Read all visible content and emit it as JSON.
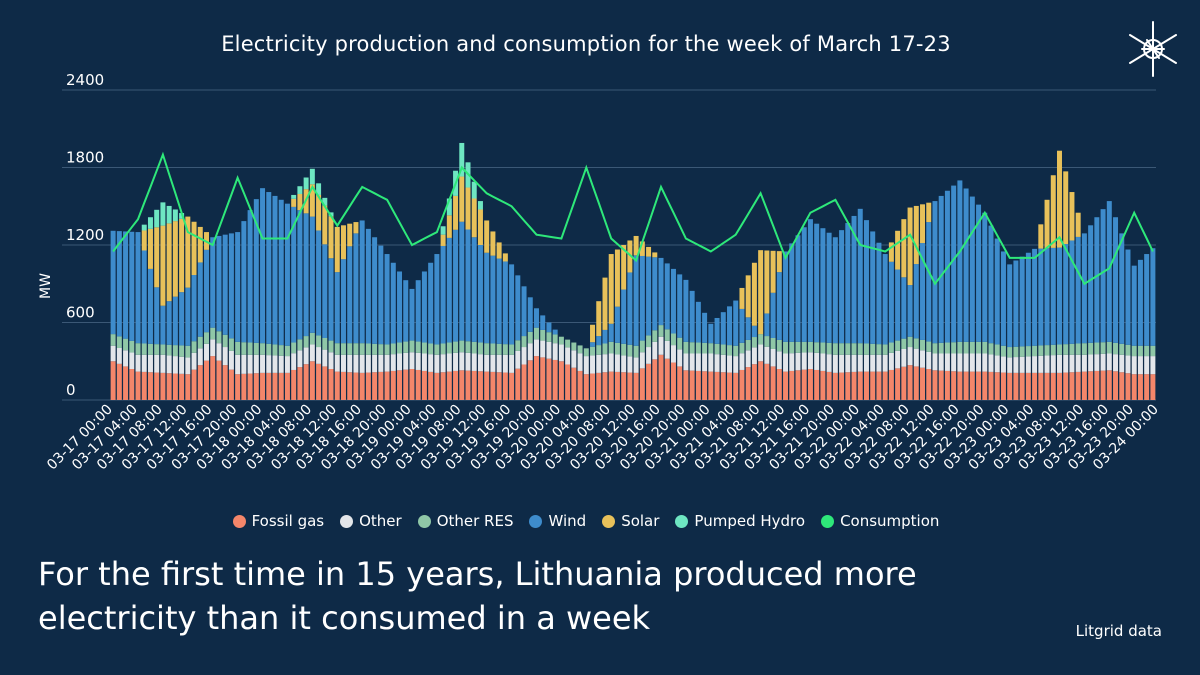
{
  "chart_data": {
    "type": "bar",
    "stacked": true,
    "title": "Electricity production and consumption for the week of March 17-23",
    "ylabel": "MW",
    "xlabel": "",
    "ylim": [
      0,
      2400
    ],
    "yticks": [
      0,
      600,
      1200,
      1800,
      2400
    ],
    "tick_labels": [
      "03-17 00:00",
      "03-17 04:00",
      "03-17 08:00",
      "03-17 12:00",
      "03-17 16:00",
      "03-17 20:00",
      "03-18 00:00",
      "03-18 04:00",
      "03-18 08:00",
      "03-18 12:00",
      "03-18 16:00",
      "03-18 20:00",
      "03-19 00:00",
      "03-19 04:00",
      "03-19 08:00",
      "03-19 12:00",
      "03-19 16:00",
      "03-19 20:00",
      "03-20 00:00",
      "03-20 04:00",
      "03-20 08:00",
      "03-20 12:00",
      "03-20 16:00",
      "03-20 20:00",
      "03-21 00:00",
      "03-21 04:00",
      "03-21 08:00",
      "03-21 12:00",
      "03-21 16:00",
      "03-21 20:00",
      "03-22 00:00",
      "03-22 04:00",
      "03-22 08:00",
      "03-22 12:00",
      "03-22 16:00",
      "03-22 20:00",
      "03-23 00:00",
      "03-23 04:00",
      "03-23 08:00",
      "03-23 12:00",
      "03-23 16:00",
      "03-23 20:00",
      "03-24 00:00"
    ],
    "bars_per_tick": 4,
    "series": [
      {
        "name": "Fossil gas",
        "color": "#f4866a",
        "values": [
          300,
          220,
          210,
          200,
          340,
          200,
          210,
          210,
          300,
          220,
          210,
          220,
          240,
          210,
          230,
          220,
          210,
          340,
          300,
          200,
          220,
          210,
          350,
          230,
          220,
          210,
          300,
          220,
          240,
          210,
          220,
          220,
          270,
          230,
          220,
          220,
          210,
          210,
          210,
          220,
          230,
          200,
          200
        ]
      },
      {
        "name": "Other",
        "color": "#e3e6ea",
        "values": [
          120,
          130,
          140,
          130,
          130,
          150,
          140,
          130,
          130,
          130,
          140,
          130,
          130,
          140,
          140,
          130,
          140,
          130,
          130,
          140,
          140,
          120,
          140,
          130,
          140,
          130,
          130,
          140,
          130,
          140,
          130,
          130,
          140,
          130,
          140,
          140,
          120,
          130,
          140,
          130,
          130,
          140,
          140
        ]
      },
      {
        "name": "Other RES",
        "color": "#8fc7a7",
        "values": [
          90,
          90,
          80,
          90,
          90,
          100,
          90,
          80,
          90,
          90,
          90,
          80,
          90,
          80,
          90,
          90,
          80,
          90,
          60,
          60,
          90,
          90,
          90,
          90,
          80,
          80,
          80,
          90,
          80,
          90,
          90,
          80,
          80,
          80,
          90,
          90,
          80,
          80,
          80,
          90,
          90,
          80,
          80
        ]
      },
      {
        "name": "Wind",
        "color": "#3e8ccc",
        "values": [
          800,
          860,
          300,
          450,
          700,
          850,
          1200,
          1100,
          900,
          550,
          950,
          700,
          400,
          700,
          920,
          700,
          620,
          150,
          0,
          0,
          140,
          700,
          520,
          480,
          150,
          350,
          0,
          700,
          950,
          820,
          1040,
          700,
          400,
          1100,
          1250,
          1000,
          640,
          750,
          750,
          850,
          1090,
          620,
          800
        ]
      },
      {
        "name": "Solar",
        "color": "#e8c15a",
        "values": [
          0,
          0,
          620,
          550,
          0,
          0,
          0,
          0,
          250,
          350,
          0,
          0,
          0,
          0,
          350,
          250,
          0,
          0,
          0,
          0,
          540,
          150,
          0,
          0,
          0,
          0,
          650,
          0,
          0,
          0,
          0,
          0,
          600,
          0,
          0,
          0,
          0,
          0,
          750,
          0,
          0,
          0,
          0
        ]
      },
      {
        "name": "Pumped Hydro",
        "color": "#6ee6c2",
        "values": [
          0,
          0,
          180,
          0,
          0,
          0,
          0,
          0,
          120,
          0,
          0,
          0,
          0,
          0,
          260,
          0,
          0,
          0,
          0,
          0,
          0,
          0,
          0,
          0,
          0,
          0,
          0,
          0,
          0,
          0,
          0,
          0,
          0,
          0,
          0,
          0,
          0,
          0,
          0,
          0,
          0,
          0,
          0
        ]
      },
      {
        "name": "Consumption",
        "color": "#2ee87a",
        "type": "line",
        "values": [
          1150,
          1400,
          1900,
          1300,
          1200,
          1720,
          1250,
          1250,
          1650,
          1350,
          1650,
          1550,
          1200,
          1300,
          1800,
          1600,
          1500,
          1280,
          1250,
          1800,
          1250,
          1080,
          1650,
          1250,
          1150,
          1280,
          1600,
          1100,
          1450,
          1550,
          1200,
          1150,
          1280,
          900,
          1150,
          1450,
          1100,
          1100,
          1260,
          900,
          1020,
          1450,
          1050
        ]
      }
    ]
  },
  "legend": {
    "items": [
      {
        "label": "Fossil gas",
        "color": "#f4866a"
      },
      {
        "label": "Other",
        "color": "#e3e6ea"
      },
      {
        "label": "Other RES",
        "color": "#8fc7a7"
      },
      {
        "label": "Wind",
        "color": "#3e8ccc"
      },
      {
        "label": "Solar",
        "color": "#e8c15a"
      },
      {
        "label": "Pumped Hydro",
        "color": "#6ee6c2"
      },
      {
        "label": "Consumption",
        "color": "#2ee87a"
      }
    ]
  },
  "headline": "For the first time in 15 years, Lithuania produced more electricity than it consumed in a week",
  "source": "Litgrid data",
  "logo": {
    "icon": "snowflake-compass-icon"
  }
}
